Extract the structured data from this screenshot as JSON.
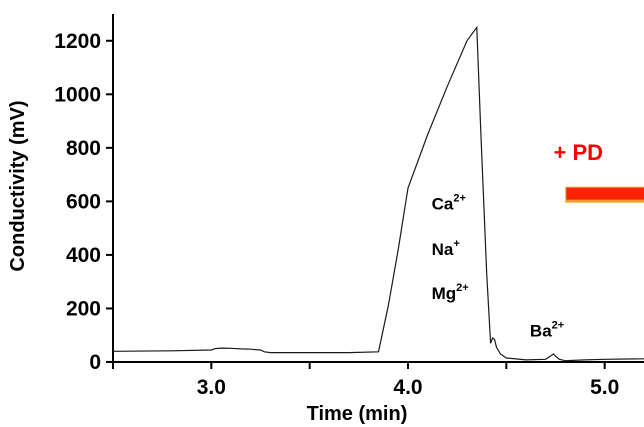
{
  "chart_data": {
    "type": "line",
    "title": "",
    "xlabel": "Time (min)",
    "ylabel": "Conductivity (mV)",
    "xlim": [
      2.5,
      5.2
    ],
    "ylim": [
      0,
      1300
    ],
    "xticks": [
      3.0,
      4.0,
      5.0
    ],
    "xtick_labels": [
      "3.0",
      "4.0",
      "5.0"
    ],
    "yticks": [
      0,
      200,
      400,
      600,
      800,
      1000,
      1200
    ],
    "ytick_labels": [
      "0",
      "200",
      "400",
      "600",
      "800",
      "1000",
      "1200"
    ],
    "grid": false,
    "legend": "none",
    "series": [
      {
        "color": "#1a1a1a",
        "x": [
          2.5,
          2.8,
          3.0,
          3.02,
          3.05,
          3.1,
          3.15,
          3.2,
          3.25,
          3.27,
          3.3,
          3.5,
          3.7,
          3.85,
          3.9,
          3.95,
          4.0,
          4.1,
          4.2,
          4.3,
          4.33,
          4.35,
          4.37,
          4.4,
          4.42,
          4.43,
          4.44,
          4.45,
          4.47,
          4.5,
          4.6,
          4.7,
          4.72,
          4.74,
          4.75,
          4.77,
          4.8,
          4.9,
          5.0,
          5.2
        ],
        "y": [
          40,
          42,
          45,
          50,
          52,
          51,
          49,
          48,
          45,
          38,
          35,
          35,
          35,
          38,
          210,
          420,
          650,
          850,
          1030,
          1200,
          1230,
          1250,
          860,
          330,
          70,
          90,
          85,
          55,
          30,
          15,
          8,
          10,
          20,
          30,
          22,
          10,
          5,
          8,
          10,
          12
        ]
      }
    ],
    "annotations": [
      {
        "base": "Ca",
        "sup": "2+",
        "x": 4.12,
        "y": 570
      },
      {
        "base": "Na",
        "sup": "+",
        "x": 4.12,
        "y": 400
      },
      {
        "base": "Mg",
        "sup": "2+",
        "x": 4.12,
        "y": 235
      },
      {
        "base": "Ba",
        "sup": "2+",
        "x": 4.62,
        "y": 95
      }
    ],
    "red_label": {
      "text": "+ PD",
      "x": 4.74,
      "y": 755
    },
    "red_bar": {
      "x0": 4.8,
      "x1": 5.2,
      "y": 625,
      "color": "#ff2200",
      "shadow": "#f0a030"
    }
  }
}
